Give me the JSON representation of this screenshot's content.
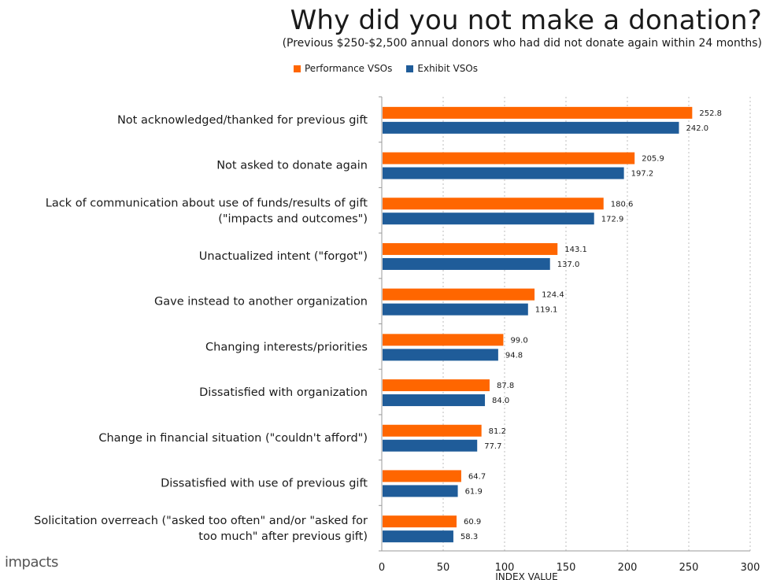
{
  "title": "Why did you not make a donation?",
  "subtitle": "(Previous $250-$2,500 annual donors who had did not donate again within 24 months)",
  "logo_text": "impacts",
  "chart_data": {
    "type": "bar",
    "orientation": "horizontal",
    "title": "Why did you not make a donation?",
    "subtitle": "(Previous $250-$2,500 annual donors who had did not donate again within 24 months)",
    "xlabel": "INDEX VALUE",
    "xlim": [
      0,
      300
    ],
    "xticks": [
      0,
      50,
      100,
      150,
      200,
      250,
      300
    ],
    "grid": "vertical dotted",
    "legend_position": "top",
    "categories": [
      [
        "Not acknowledged/thanked for previous gift"
      ],
      [
        "Not asked to donate again"
      ],
      [
        "Lack of communication about use of funds/results of gift",
        "(\"impacts and outcomes\")"
      ],
      [
        "Unactualized intent (\"forgot\")"
      ],
      [
        "Gave instead to another organization"
      ],
      [
        "Changing interests/priorities"
      ],
      [
        "Dissatisfied with organization"
      ],
      [
        "Change in financial situation (\"couldn't afford\")"
      ],
      [
        "Dissatisfied with use of previous gift"
      ],
      [
        "Solicitation overreach (\"asked too often\" and/or \"asked for",
        "too much\" after previous gift)"
      ]
    ],
    "series": [
      {
        "name": "Performance VSOs",
        "color": "#FF6600",
        "values": [
          252.8,
          205.9,
          180.6,
          143.1,
          124.4,
          99.0,
          87.8,
          81.2,
          64.7,
          60.9
        ],
        "labels": [
          "252.8",
          "205.9",
          "180.6",
          "143.1",
          "124.4",
          "99.0",
          "87.8",
          "81.2",
          "64.7",
          "60.9"
        ]
      },
      {
        "name": "Exhibit VSOs",
        "color": "#1F5C99",
        "values": [
          242.0,
          197.2,
          172.9,
          137.0,
          119.1,
          94.8,
          84.0,
          77.7,
          61.9,
          58.3
        ],
        "labels": [
          "242.0",
          "197.2",
          "172.9",
          "137.0",
          "119.1",
          "94.8",
          "84.0",
          "77.7",
          "61.9",
          "58.3"
        ]
      }
    ]
  }
}
